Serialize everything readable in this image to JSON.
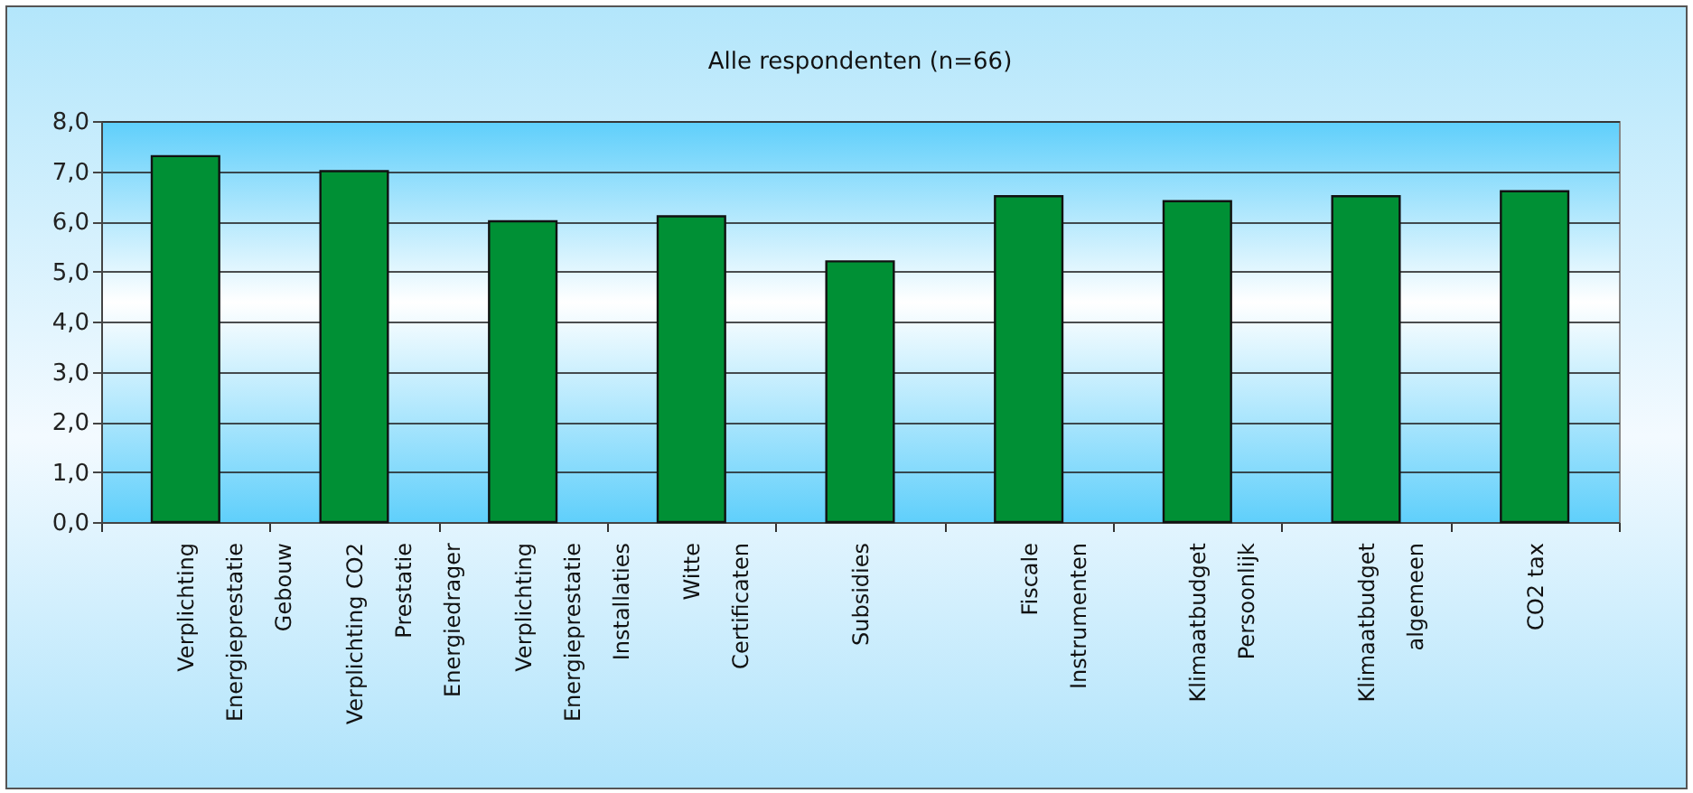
{
  "chart_data": {
    "type": "bar",
    "title": "Alle respondenten (n=66)",
    "categories": [
      "Verplichting Energieprestatie Gebouw",
      "Verplichting CO2 Prestatie Energiedrager",
      "Verplichting Energieprestatie Installaties",
      "Witte Certificaten",
      "Subsidies",
      "Fiscale Instrumenten",
      "Klimaatbudget Persoonlijk",
      "Klimaatbudget algemeen",
      "CO2 tax"
    ],
    "values": [
      7.3,
      7.0,
      6.0,
      6.1,
      5.2,
      6.5,
      6.4,
      6.5,
      6.6
    ],
    "color": "#009035",
    "ylim": [
      0,
      8
    ],
    "yticks": [
      {
        "value": 0,
        "label": "0,0"
      },
      {
        "value": 1,
        "label": "1,0"
      },
      {
        "value": 2,
        "label": "2,0"
      },
      {
        "value": 3,
        "label": "3,0"
      },
      {
        "value": 4,
        "label": "4,0"
      },
      {
        "value": 5,
        "label": "5,0"
      },
      {
        "value": 6,
        "label": "6,0"
      },
      {
        "value": 7,
        "label": "7,0"
      },
      {
        "value": 8,
        "label": "8,0"
      }
    ],
    "grid": "y"
  }
}
